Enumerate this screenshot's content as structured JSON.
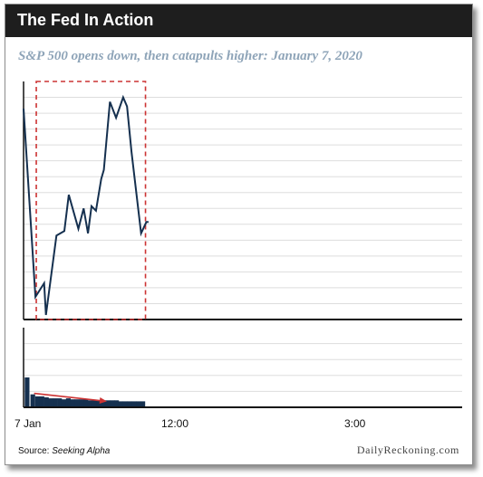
{
  "header": {
    "title": "The Fed In Action"
  },
  "subtitle": "S&P 500 opens down, then catapults higher: January 7, 2020",
  "x_ticks": [
    "7 Jan",
    "12:00",
    "3:00"
  ],
  "source": {
    "prefix": "Source: ",
    "name": "Seeking Alpha"
  },
  "brand": "DailyReckoning.com",
  "colors": {
    "line": "#15304f",
    "highlight": "#cc3333",
    "volume": "#15304f",
    "grid": "#dddddd",
    "header": "#1e1e1e",
    "subtitle": "#8ea4b8"
  },
  "chart_data": {
    "type": "line",
    "title": "S&P 500 opens down, then catapults higher: January 7, 2020",
    "xlabel": "",
    "ylabel": "",
    "x_ticks": [
      "7 Jan",
      "12:00",
      "3:00"
    ],
    "x_range": [
      0,
      100
    ],
    "price": {
      "x": [
        0,
        2.7,
        4.7,
        5.1,
        7.5,
        9.3,
        10.3,
        12.5,
        13.7,
        14.7,
        15.5,
        16.5,
        17.7,
        18.3,
        19.7,
        21.1,
        22.7,
        23.6,
        24.6,
        26.8,
        28.0,
        28.5
      ],
      "y": [
        93,
        10,
        16,
        2,
        37,
        39,
        55,
        40,
        49,
        38,
        50,
        48,
        62,
        66,
        96,
        89,
        98,
        94,
        74,
        38,
        43,
        43
      ],
      "ylim": [
        0,
        105
      ]
    },
    "highlight_box": {
      "x": [
        2.9,
        27.8
      ],
      "y": [
        0,
        105
      ]
    },
    "volume": {
      "x": [
        0.8,
        2.1,
        3.2,
        4.2,
        5.2,
        6.2,
        7.2,
        8.2,
        9.2,
        10.2,
        11.2,
        12.2,
        13.2,
        14.2,
        15.2,
        16.2,
        17.2,
        18.2,
        19.2,
        20.2,
        21.2,
        22.2,
        23.2,
        24.2,
        25.2,
        26.2,
        27.2
      ],
      "values": [
        30,
        13,
        11,
        11,
        10,
        9,
        9,
        9,
        8,
        9,
        8,
        8,
        8,
        8,
        7,
        7,
        7,
        7,
        7,
        7,
        7,
        6,
        6,
        6,
        6,
        6,
        6
      ],
      "ylim": [
        0,
        80
      ],
      "trend_arrow": {
        "from": [
          2.4,
          14
        ],
        "to": [
          19.0,
          6
        ]
      }
    },
    "grid": true,
    "legend": "none"
  }
}
